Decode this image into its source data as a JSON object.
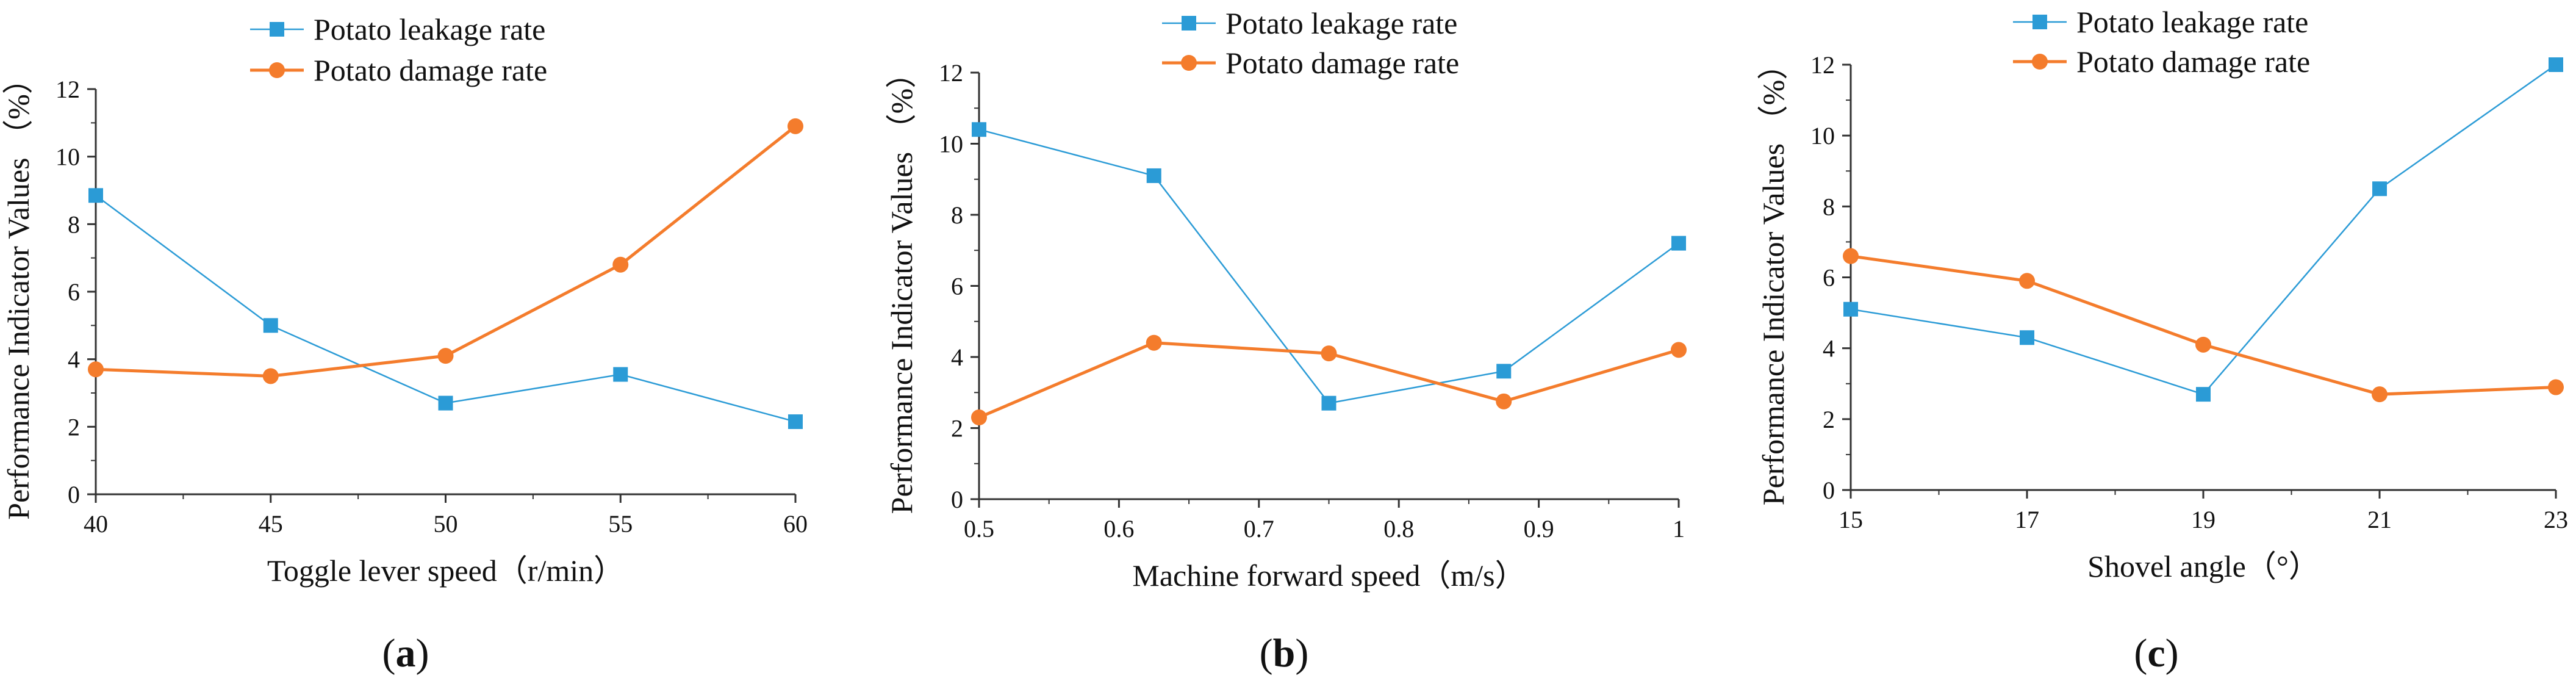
{
  "colors": {
    "leakage": "#2b9bd6",
    "damage": "#f47c2c",
    "axis": "#333333"
  },
  "chart_data": [
    {
      "type": "line",
      "panel_label": "a",
      "xlabel": "Toggle lever speed（r/min）",
      "ylabel": "Performance Indicator Values （%）",
      "x_ticks": [
        40,
        45,
        50,
        55,
        60
      ],
      "x_tick_labels": [
        "40",
        "45",
        "50",
        "55",
        "60"
      ],
      "xlim": [
        40,
        60
      ],
      "ylim": [
        0,
        12
      ],
      "y_ticks": [
        0,
        2,
        4,
        6,
        8,
        10,
        12
      ],
      "y_tick_labels": [
        "0",
        "2",
        "4",
        "6",
        "8",
        "10",
        "12"
      ],
      "series": [
        {
          "name": "Potato leakage rate",
          "marker": "square",
          "x": [
            40,
            45,
            50,
            55,
            60
          ],
          "values": [
            8.85,
            5.0,
            2.7,
            3.55,
            2.15
          ]
        },
        {
          "name": "Potato damage rate",
          "marker": "circle",
          "x": [
            40,
            45,
            50,
            55,
            60
          ],
          "values": [
            3.7,
            3.5,
            4.1,
            6.8,
            10.9
          ]
        }
      ]
    },
    {
      "type": "line",
      "panel_label": "b",
      "xlabel": "Machine forward speed（m/s）",
      "ylabel": "Performance Indicator Values （%）",
      "x_ticks": [
        0.5,
        0.6,
        0.7,
        0.8,
        0.9,
        1.0
      ],
      "x_tick_labels": [
        "0.5",
        "0.6",
        "0.7",
        "0.8",
        "0.9",
        "1"
      ],
      "xlim": [
        0.5,
        1.0
      ],
      "ylim": [
        0,
        12
      ],
      "y_ticks": [
        0,
        2,
        4,
        6,
        8,
        10,
        12
      ],
      "y_tick_labels": [
        "0",
        "2",
        "4",
        "6",
        "8",
        "10",
        "12"
      ],
      "series": [
        {
          "name": "Potato leakage rate",
          "marker": "square",
          "x": [
            0.5,
            0.625,
            0.75,
            0.875,
            1.0
          ],
          "values": [
            10.4,
            9.1,
            2.7,
            3.6,
            7.2
          ]
        },
        {
          "name": "Potato damage rate",
          "marker": "circle",
          "x": [
            0.5,
            0.625,
            0.75,
            0.875,
            1.0
          ],
          "values": [
            2.3,
            4.4,
            4.1,
            2.75,
            4.2
          ]
        }
      ]
    },
    {
      "type": "line",
      "panel_label": "c",
      "xlabel": "Shovel angle（°）",
      "ylabel": "Performance Indicator Values （%）",
      "x_ticks": [
        15,
        17,
        19,
        21,
        23
      ],
      "x_tick_labels": [
        "15",
        "17",
        "19",
        "21",
        "23"
      ],
      "xlim": [
        15,
        23
      ],
      "ylim": [
        0,
        12
      ],
      "y_ticks": [
        0,
        2,
        4,
        6,
        8,
        10,
        12
      ],
      "y_tick_labels": [
        "0",
        "2",
        "4",
        "6",
        "8",
        "10",
        "12"
      ],
      "series": [
        {
          "name": "Potato leakage rate",
          "marker": "square",
          "x": [
            15,
            17,
            19,
            21,
            23
          ],
          "values": [
            5.1,
            4.3,
            2.7,
            8.5,
            12.0
          ]
        },
        {
          "name": "Potato damage rate",
          "marker": "circle",
          "x": [
            15,
            17,
            19,
            21,
            23
          ],
          "values": [
            6.6,
            5.9,
            4.1,
            2.7,
            2.9
          ]
        }
      ]
    }
  ]
}
